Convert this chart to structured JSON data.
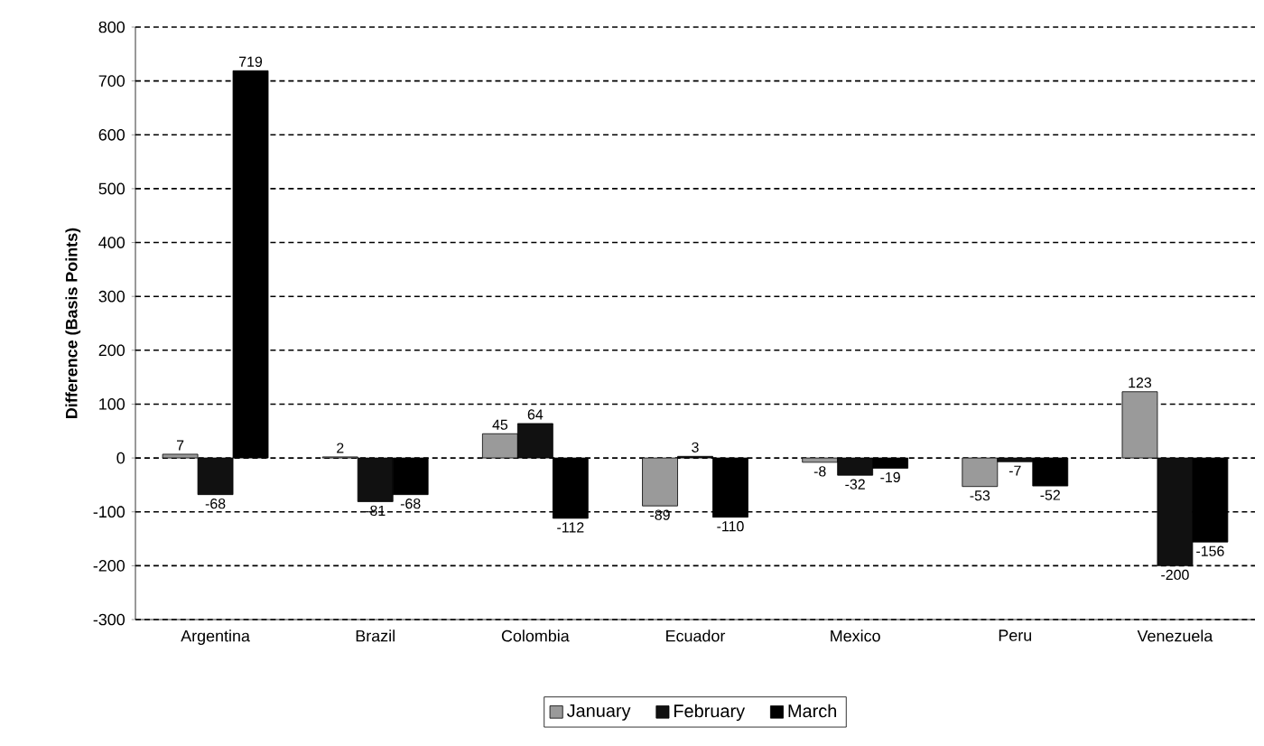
{
  "chart_data": {
    "type": "bar",
    "ylabel": "Difference (Basis Points)",
    "categories": [
      "Argentina",
      "Brazil",
      "Colombia",
      "Ecuador",
      "Mexico",
      "Peru",
      "Venezuela"
    ],
    "series": [
      {
        "name": "January",
        "color": "#9a9a9a",
        "values": [
          7,
          2,
          45,
          -89,
          -8,
          -53,
          123
        ]
      },
      {
        "name": "February",
        "color": "#111111",
        "values": [
          -68,
          -81,
          64,
          3,
          -32,
          -7,
          -200
        ]
      },
      {
        "name": "March",
        "color": "#000000",
        "values": [
          719,
          -68,
          -112,
          -110,
          -19,
          -52,
          -156
        ]
      }
    ],
    "ylim": [
      -300,
      800
    ],
    "yticks": [
      -300,
      -200,
      -100,
      0,
      100,
      200,
      300,
      400,
      500,
      600,
      700,
      800
    ],
    "grid": "y",
    "legend": "bottom",
    "data_labels": true
  }
}
